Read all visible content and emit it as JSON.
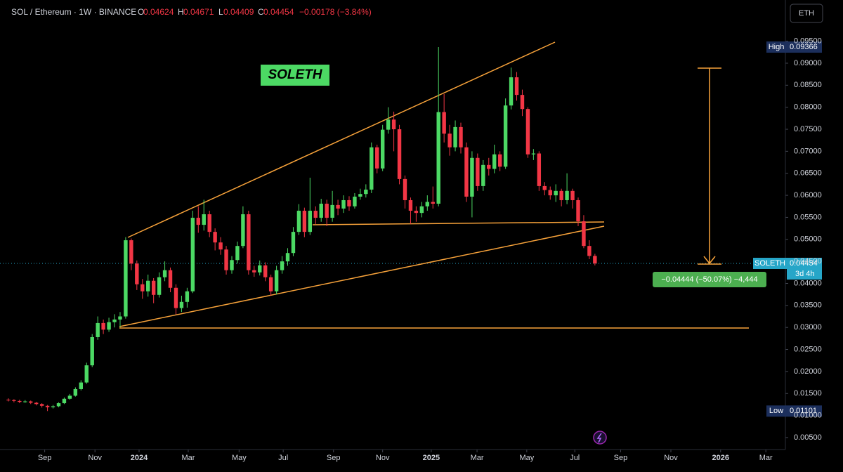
{
  "header": {
    "symbol": "SOL / Ethereum · 1W · BINANCE",
    "o": "O",
    "h": "H",
    "l": "L",
    "c": "C",
    "change": "−0.00178 (−3.84%)",
    "currency": "ETH"
  },
  "chart_data": {
    "type": "candlestick",
    "annotations": {
      "badge": "SOLETH",
      "measure": "−0.04444 (−50.07%) −4,444"
    },
    "tags": {
      "high": "High",
      "low": "Low",
      "price": "SOLETH",
      "countdown": "3d 4h"
    },
    "up_color": "#4cd964",
    "down_color": "#f23645",
    "open": [
      0.0136,
      0.0135,
      0.0133,
      0.0131,
      0.0132,
      0.0129,
      0.0126,
      0.0122,
      0.0119,
      0.0121,
      0.0128,
      0.0138,
      0.0145,
      0.016,
      0.0175,
      0.0214,
      0.0278,
      0.031,
      0.0295,
      0.0312,
      0.0318,
      0.0325,
      0.0498,
      0.0445,
      0.0398,
      0.0382,
      0.0406,
      0.0374,
      0.0414,
      0.043,
      0.039,
      0.0344,
      0.0358,
      0.0382,
      0.0549,
      0.0533,
      0.0557,
      0.0517,
      0.0493,
      0.0477,
      0.043,
      0.0453,
      0.0485,
      0.0557,
      0.043,
      0.0425,
      0.0441,
      0.0414,
      0.0382,
      0.043,
      0.045,
      0.0469,
      0.0517,
      0.0565,
      0.0517,
      0.0565,
      0.0549,
      0.0581,
      0.0549,
      0.0578,
      0.057,
      0.0589,
      0.0575,
      0.0597,
      0.0603,
      0.0613,
      0.0709,
      0.0661,
      0.0749,
      0.0772,
      0.075,
      0.0637,
      0.0589,
      0.0565,
      0.056,
      0.0575,
      0.0585,
      0.0581,
      0.0789,
      0.074,
      0.0709,
      0.0755,
      0.0709,
      0.0597,
      0.0685,
      0.0621,
      0.0669,
      0.066,
      0.0693,
      0.0665,
      0.0804,
      0.0868,
      0.0828,
      0.0796,
      0.0693,
      0.0695,
      0.0621,
      0.0612,
      0.06,
      0.061,
      0.0589,
      0.061,
      0.0589,
      0.0541,
      0.0485,
      0.04624
    ],
    "high": [
      0.0139,
      0.0137,
      0.0136,
      0.0135,
      0.0134,
      0.0131,
      0.0128,
      0.0124,
      0.0124,
      0.013,
      0.0141,
      0.0149,
      0.0164,
      0.018,
      0.022,
      0.0285,
      0.0325,
      0.0318,
      0.0322,
      0.033,
      0.0335,
      0.0505,
      0.0502,
      0.0452,
      0.041,
      0.042,
      0.0412,
      0.0425,
      0.045,
      0.0436,
      0.0398,
      0.0372,
      0.039,
      0.0565,
      0.0575,
      0.059,
      0.0565,
      0.0525,
      0.0505,
      0.0485,
      0.0462,
      0.0495,
      0.0575,
      0.0565,
      0.044,
      0.0452,
      0.0448,
      0.042,
      0.044,
      0.0462,
      0.048,
      0.0528,
      0.058,
      0.0572,
      0.064,
      0.0575,
      0.0592,
      0.059,
      0.061,
      0.059,
      0.06,
      0.0598,
      0.0605,
      0.0615,
      0.0625,
      0.072,
      0.0715,
      0.076,
      0.08,
      0.079,
      0.076,
      0.0645,
      0.0595,
      0.0575,
      0.0585,
      0.06,
      0.062,
      0.09366,
      0.083,
      0.076,
      0.077,
      0.0765,
      0.072,
      0.07,
      0.0695,
      0.068,
      0.0685,
      0.0715,
      0.07,
      0.082,
      0.089,
      0.088,
      0.084,
      0.08,
      0.0705,
      0.07,
      0.063,
      0.062,
      0.0625,
      0.0615,
      0.065,
      0.0615,
      0.0595,
      0.0555,
      0.0498,
      0.04671
    ],
    "low": [
      0.0132,
      0.013,
      0.0128,
      0.0129,
      0.0126,
      0.0123,
      0.0118,
      0.01101,
      0.0116,
      0.0119,
      0.0126,
      0.0136,
      0.0143,
      0.0157,
      0.0172,
      0.021,
      0.0272,
      0.0285,
      0.029,
      0.03,
      0.03,
      0.032,
      0.043,
      0.0385,
      0.0365,
      0.037,
      0.0355,
      0.0368,
      0.0405,
      0.038,
      0.033,
      0.0335,
      0.0345,
      0.0378,
      0.0515,
      0.052,
      0.0505,
      0.0475,
      0.0465,
      0.042,
      0.0422,
      0.0445,
      0.048,
      0.042,
      0.0415,
      0.0418,
      0.0405,
      0.0372,
      0.0375,
      0.0422,
      0.044,
      0.0462,
      0.051,
      0.0505,
      0.051,
      0.0535,
      0.054,
      0.053,
      0.054,
      0.0555,
      0.056,
      0.0565,
      0.057,
      0.059,
      0.0595,
      0.0605,
      0.065,
      0.0655,
      0.074,
      0.07,
      0.0625,
      0.057,
      0.0535,
      0.054,
      0.055,
      0.0565,
      0.057,
      0.0575,
      0.072,
      0.069,
      0.07,
      0.0695,
      0.0585,
      0.055,
      0.061,
      0.061,
      0.0645,
      0.065,
      0.0655,
      0.066,
      0.0795,
      0.0815,
      0.078,
      0.0685,
      0.068,
      0.061,
      0.06,
      0.059,
      0.0585,
      0.0575,
      0.058,
      0.057,
      0.053,
      0.048,
      0.0455,
      0.04409
    ],
    "close": [
      0.0135,
      0.0133,
      0.0131,
      0.0132,
      0.0129,
      0.0126,
      0.0122,
      0.0119,
      0.0121,
      0.0128,
      0.0138,
      0.0145,
      0.016,
      0.0175,
      0.0214,
      0.0278,
      0.031,
      0.0295,
      0.0312,
      0.0318,
      0.0325,
      0.0498,
      0.0445,
      0.0398,
      0.0382,
      0.0406,
      0.0374,
      0.0414,
      0.043,
      0.039,
      0.0344,
      0.0358,
      0.0382,
      0.0549,
      0.0533,
      0.0557,
      0.0517,
      0.0493,
      0.0477,
      0.043,
      0.0453,
      0.0485,
      0.0557,
      0.043,
      0.0425,
      0.0441,
      0.0414,
      0.0382,
      0.043,
      0.045,
      0.0469,
      0.0517,
      0.0565,
      0.0517,
      0.0565,
      0.0549,
      0.0581,
      0.0549,
      0.0578,
      0.057,
      0.0589,
      0.0575,
      0.0597,
      0.0603,
      0.0613,
      0.0709,
      0.0661,
      0.0749,
      0.0772,
      0.075,
      0.0637,
      0.0589,
      0.0565,
      0.056,
      0.0575,
      0.0585,
      0.0581,
      0.0789,
      0.074,
      0.0709,
      0.0755,
      0.0709,
      0.0597,
      0.0685,
      0.0621,
      0.0669,
      0.066,
      0.0693,
      0.0665,
      0.0804,
      0.0868,
      0.0828,
      0.0796,
      0.0693,
      0.0695,
      0.0621,
      0.0612,
      0.06,
      0.061,
      0.0589,
      0.061,
      0.0589,
      0.0541,
      0.0485,
      0.04624,
      0.04454
    ],
    "xlim": [
      -1.5,
      139.1
    ],
    "xticks": [
      {
        "value": 6.5,
        "label": "Sep"
      },
      {
        "value": 15.5,
        "label": "Nov"
      },
      {
        "value": 23.4,
        "label": "2024"
      },
      {
        "value": 32.2,
        "label": "Mar"
      },
      {
        "value": 41.3,
        "label": "May"
      },
      {
        "value": 49.2,
        "label": "Jul"
      },
      {
        "value": 58.2,
        "label": "Sep"
      },
      {
        "value": 67,
        "label": "Nov"
      },
      {
        "value": 75.7,
        "label": "2025"
      },
      {
        "value": 83.9,
        "label": "Mar"
      },
      {
        "value": 92.8,
        "label": "May"
      },
      {
        "value": 101.4,
        "label": "Jul"
      },
      {
        "value": 109.6,
        "label": "Sep"
      },
      {
        "value": 118.6,
        "label": "Nov"
      },
      {
        "value": 127.5,
        "label": "2026"
      },
      {
        "value": 135.6,
        "label": "Mar"
      }
    ],
    "ylim": [
      0.00228,
      0.10435
    ],
    "yticks": [
      {
        "value": 0.005,
        "label": "0.00500"
      },
      {
        "value": 0.01,
        "label": "0.01000"
      },
      {
        "value": 0.015,
        "label": "0.01500"
      },
      {
        "value": 0.02,
        "label": "0.02000"
      },
      {
        "value": 0.025,
        "label": "0.02500"
      },
      {
        "value": 0.03,
        "label": "0.03000"
      },
      {
        "value": 0.035,
        "label": "0.03500"
      },
      {
        "value": 0.04,
        "label": "0.04000"
      },
      {
        "value": 0.045,
        "label": "0.04500"
      },
      {
        "value": 0.05,
        "label": "0.05000"
      },
      {
        "value": 0.055,
        "label": "0.05500"
      },
      {
        "value": 0.06,
        "label": "0.06000"
      },
      {
        "value": 0.065,
        "label": "0.06500"
      },
      {
        "value": 0.07,
        "label": "0.07000"
      },
      {
        "value": 0.075,
        "label": "0.07500"
      },
      {
        "value": 0.08,
        "label": "0.08000"
      },
      {
        "value": 0.085,
        "label": "0.08500"
      },
      {
        "value": 0.09,
        "label": "0.09000"
      },
      {
        "value": 0.095,
        "label": "0.09500"
      }
    ]
  }
}
